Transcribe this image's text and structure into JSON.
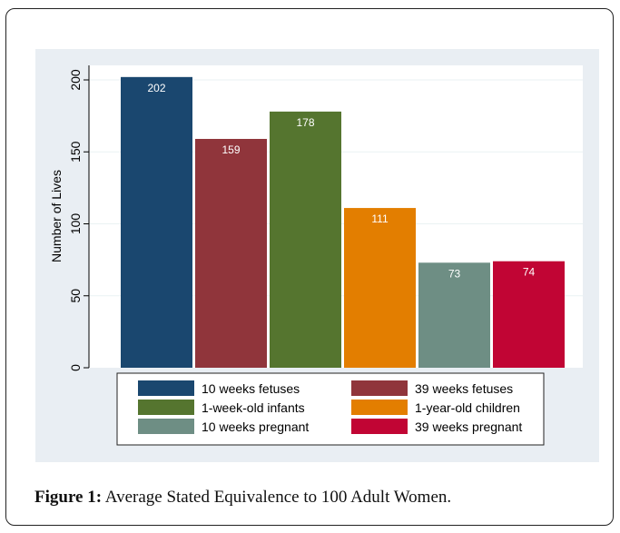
{
  "caption": {
    "label": "Figure 1:",
    "text": " Average Stated Equivalence to 100 Adult Women."
  },
  "chart_data": {
    "type": "bar",
    "title": "",
    "xlabel": "",
    "ylabel": "Number of Lives",
    "ylim": [
      0,
      210
    ],
    "yticks": [
      0,
      50,
      100,
      150,
      200
    ],
    "grid": true,
    "legend_position": "bottom",
    "series": [
      {
        "name": "10 weeks fetuses",
        "value": 202,
        "color": "#1a476f"
      },
      {
        "name": "39 weeks fetuses",
        "value": 159,
        "color": "#90353b"
      },
      {
        "name": "1-week-old infants",
        "value": 178,
        "color": "#55752f"
      },
      {
        "name": "1-year-old children",
        "value": 111,
        "color": "#e37e00"
      },
      {
        "name": "10 weeks pregnant",
        "value": 73,
        "color": "#6e8e84"
      },
      {
        "name": "39 weeks pregnant",
        "value": 74,
        "color": "#c10534"
      }
    ]
  }
}
